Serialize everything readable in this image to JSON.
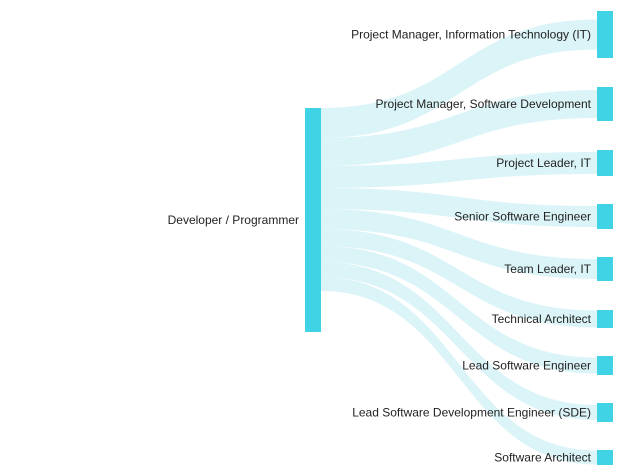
{
  "chart_data": {
    "type": "sankey",
    "source": {
      "label": "Developer / Programmer",
      "color": "#3fd3e5"
    },
    "link_color": "#d9f3f8",
    "targets": [
      {
        "label": "Project Manager, Information Technology (IT)"
      },
      {
        "label": "Project Manager, Software Development"
      },
      {
        "label": "Project Leader, IT"
      },
      {
        "label": "Senior Software Engineer"
      },
      {
        "label": "Team Leader, IT"
      },
      {
        "label": "Technical Architect"
      },
      {
        "label": "Lead Software Engineer"
      },
      {
        "label": "Lead Software Development Engineer (SDE)"
      },
      {
        "label": "Software Architect"
      }
    ]
  }
}
